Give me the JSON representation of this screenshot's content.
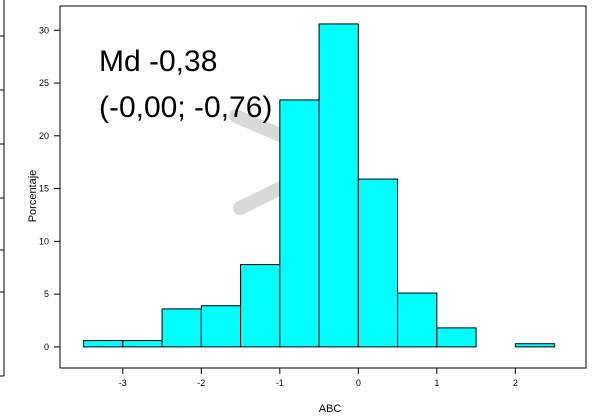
{
  "chart_data": {
    "type": "histogram",
    "title": "",
    "xlabel": "ABC",
    "ylabel": "Porcentaje",
    "xlim": [
      -3.8,
      2.9
    ],
    "ylim": [
      -2,
      32.3
    ],
    "bin_width": 0.5,
    "bins": [
      {
        "start": -3.5,
        "end": -3.0,
        "value": 0.6
      },
      {
        "start": -3.0,
        "end": -2.5,
        "value": 0.6
      },
      {
        "start": -2.5,
        "end": -2.0,
        "value": 3.6
      },
      {
        "start": -2.0,
        "end": -1.5,
        "value": 3.9
      },
      {
        "start": -1.5,
        "end": -1.0,
        "value": 7.8
      },
      {
        "start": -1.0,
        "end": -0.5,
        "value": 23.4
      },
      {
        "start": -0.5,
        "end": 0.0,
        "value": 30.6
      },
      {
        "start": 0.0,
        "end": 0.5,
        "value": 15.9
      },
      {
        "start": 0.5,
        "end": 1.0,
        "value": 5.1
      },
      {
        "start": 1.0,
        "end": 1.5,
        "value": 1.8
      },
      {
        "start": 1.5,
        "end": 2.0,
        "value": 0.0
      },
      {
        "start": 2.0,
        "end": 2.5,
        "value": 0.3
      }
    ],
    "x_ticks": [
      {
        "value": -3,
        "label": "-3"
      },
      {
        "value": -2,
        "label": "-2"
      },
      {
        "value": -1,
        "label": "-1"
      },
      {
        "value": 0,
        "label": "0"
      },
      {
        "value": 1,
        "label": "1"
      },
      {
        "value": 2,
        "label": "2"
      }
    ],
    "y_ticks": [
      {
        "value": 0,
        "label": "0"
      },
      {
        "value": 5,
        "label": "5"
      },
      {
        "value": 10,
        "label": "10"
      },
      {
        "value": 15,
        "label": "15"
      },
      {
        "value": 20,
        "label": "20"
      },
      {
        "value": 25,
        "label": "25"
      },
      {
        "value": 30,
        "label": "30"
      }
    ],
    "annotation": {
      "line1": "Md -0,38",
      "line2": "(-0,00; -0,76)"
    },
    "colors": {
      "bar_fill": "#00ffff",
      "bar_stroke": "#000000",
      "axis": "#000000",
      "watermark": "#d9d9d9"
    }
  }
}
